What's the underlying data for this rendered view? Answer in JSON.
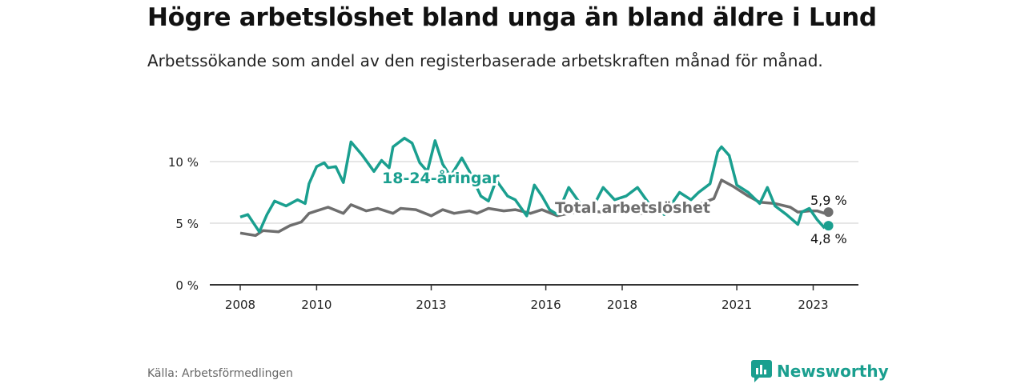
{
  "title": "Högre arbetslöshet bland unga än bland äldre i Lund",
  "subtitle": "Arbetssökande som andel av den registerbaserade arbetskraften månad för månad.",
  "source": "Källa: Arbetsförmedlingen",
  "logo": "Newsworthy",
  "chart_data": {
    "type": "line",
    "ylim": [
      0,
      12
    ],
    "xlim": [
      2007.6,
      2024.2
    ],
    "yticks": [
      {
        "v": 0,
        "label": "0 %"
      },
      {
        "v": 5,
        "label": "5 %"
      },
      {
        "v": 10,
        "label": "10 %"
      }
    ],
    "xticks": [
      {
        "v": 2008,
        "label": "2008"
      },
      {
        "v": 2010,
        "label": "2010"
      },
      {
        "v": 2013,
        "label": "2013"
      },
      {
        "v": 2016,
        "label": "2016"
      },
      {
        "v": 2018,
        "label": "2018"
      },
      {
        "v": 2021,
        "label": "2021"
      },
      {
        "v": 2023,
        "label": "2023"
      }
    ],
    "series": [
      {
        "name": "18-24-åringar",
        "color": "#1a9f8f",
        "end_label": "4,8 %",
        "end_value": 4.8,
        "x": [
          2008.0,
          2008.2,
          2008.5,
          2008.7,
          2008.9,
          2009.2,
          2009.5,
          2009.7,
          2009.8,
          2010.0,
          2010.2,
          2010.3,
          2010.5,
          2010.7,
          2010.9,
          2011.2,
          2011.5,
          2011.7,
          2011.9,
          2012.0,
          2012.3,
          2012.5,
          2012.7,
          2012.9,
          2013.1,
          2013.3,
          2013.5,
          2013.8,
          2014.0,
          2014.3,
          2014.5,
          2014.7,
          2015.0,
          2015.2,
          2015.5,
          2015.7,
          2015.9,
          2016.1,
          2016.3,
          2016.6,
          2016.9,
          2017.2,
          2017.5,
          2017.8,
          2018.1,
          2018.4,
          2018.7,
          2019.1,
          2019.5,
          2019.8,
          2020.0,
          2020.3,
          2020.5,
          2020.6,
          2020.8,
          2021.0,
          2021.3,
          2021.6,
          2021.8,
          2022.0,
          2022.3,
          2022.6,
          2022.7,
          2022.9,
          2023.1,
          2023.3
        ],
        "y": [
          5.5,
          5.7,
          4.3,
          5.7,
          6.8,
          6.4,
          6.9,
          6.6,
          8.2,
          9.6,
          9.9,
          9.5,
          9.6,
          8.3,
          11.6,
          10.5,
          9.2,
          10.1,
          9.5,
          11.2,
          11.9,
          11.5,
          9.9,
          9.2,
          11.7,
          9.8,
          8.8,
          10.3,
          9.2,
          7.2,
          6.8,
          8.5,
          7.2,
          6.9,
          5.6,
          8.1,
          7.2,
          6.1,
          5.7,
          7.9,
          6.6,
          6.1,
          7.9,
          6.9,
          7.2,
          7.9,
          6.6,
          5.7,
          7.5,
          6.9,
          7.5,
          8.2,
          10.8,
          11.2,
          10.5,
          8.1,
          7.5,
          6.6,
          7.9,
          6.4,
          5.7,
          4.9,
          5.9,
          6.2,
          5.3,
          4.6
        ]
      },
      {
        "name": "Total arbetslöshet",
        "color": "#6e6e6e",
        "end_label": "5,9 %",
        "end_value": 5.9,
        "x": [
          2008.0,
          2008.4,
          2008.6,
          2009.0,
          2009.3,
          2009.6,
          2009.8,
          2010.0,
          2010.3,
          2010.7,
          2010.9,
          2011.3,
          2011.6,
          2012.0,
          2012.2,
          2012.6,
          2013.0,
          2013.3,
          2013.6,
          2014.0,
          2014.2,
          2014.5,
          2014.9,
          2015.2,
          2015.6,
          2015.9,
          2016.3,
          2016.6,
          2017.0,
          2017.5,
          2018.0,
          2018.5,
          2019.0,
          2019.5,
          2020.0,
          2020.4,
          2020.6,
          2020.9,
          2021.3,
          2021.6,
          2022.0,
          2022.4,
          2022.6,
          2022.9,
          2023.1,
          2023.3
        ],
        "y": [
          4.2,
          4.0,
          4.4,
          4.3,
          4.8,
          5.1,
          5.8,
          6.0,
          6.3,
          5.8,
          6.5,
          6.0,
          6.2,
          5.8,
          6.2,
          6.1,
          5.6,
          6.1,
          5.8,
          6.0,
          5.8,
          6.2,
          6.0,
          6.1,
          5.8,
          6.1,
          5.6,
          5.8,
          6.0,
          5.9,
          6.0,
          5.8,
          6.0,
          6.1,
          6.5,
          7.0,
          8.5,
          8.0,
          7.2,
          6.7,
          6.6,
          6.3,
          5.9,
          6.0,
          6.0,
          5.8
        ]
      }
    ],
    "end_x": 2023.4
  }
}
